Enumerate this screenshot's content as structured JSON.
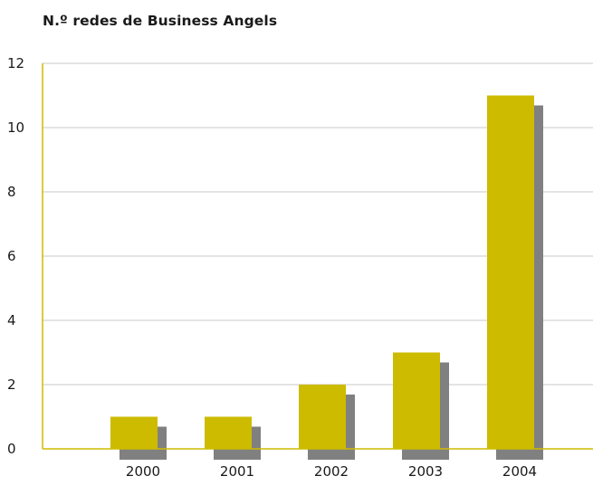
{
  "chart_data": {
    "type": "bar",
    "title": "N.º redes de Business Angels",
    "categories": [
      "2000",
      "2001",
      "2002",
      "2003",
      "2004"
    ],
    "values": [
      1,
      1,
      2,
      3,
      11
    ],
    "yticks": [
      "0",
      "2",
      "4",
      "6",
      "8",
      "10",
      "12"
    ],
    "ylim": [
      0,
      12
    ],
    "grid": true,
    "legend": "none",
    "colors": {
      "bar": "#cdbb00",
      "shadow": "#808080",
      "axis": "#cdbb00",
      "grid": "#c8c8c8"
    }
  }
}
